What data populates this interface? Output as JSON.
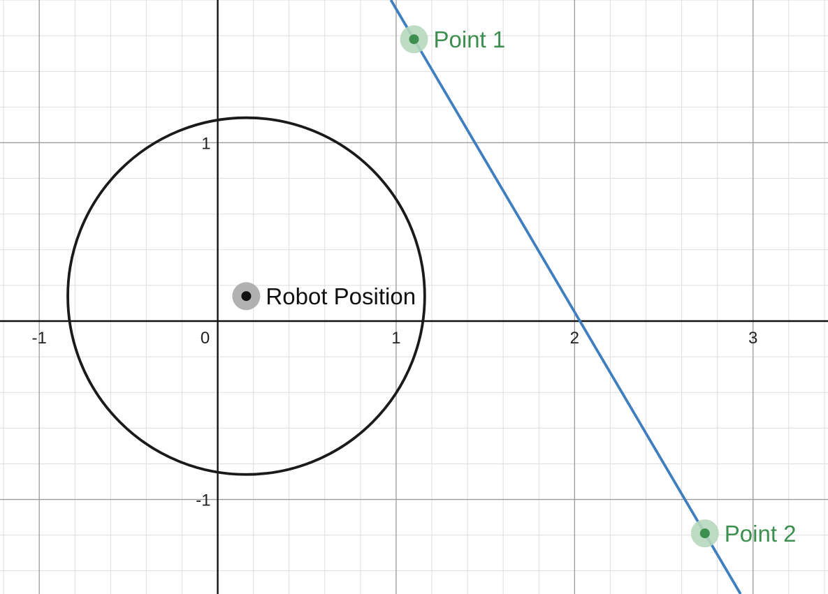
{
  "chart_data": {
    "type": "scatter",
    "title": "",
    "xlabel": "",
    "ylabel": "",
    "xlim": [
      -1.22,
      3.42
    ],
    "ylim": [
      -1.53,
      1.8
    ],
    "grid": true,
    "minor_grid_step": 0.2,
    "x_tick_labels": [
      "-1",
      "0",
      "1",
      "2",
      "3"
    ],
    "y_tick_labels": [
      "1",
      "-1"
    ],
    "x_ticks": [
      -1,
      0,
      1,
      2,
      3
    ],
    "y_ticks": [
      1,
      -1
    ],
    "points": [
      {
        "label": "Point 1",
        "x": 1.1,
        "y": 1.58,
        "color": "#3d8f4f",
        "halo": "#b7d8bc"
      },
      {
        "label": "Point 2",
        "x": 2.73,
        "y": -1.19,
        "color": "#3d8f4f",
        "halo": "#b7d8bc"
      },
      {
        "label": "Robot Position",
        "x": 0.16,
        "y": 0.14,
        "color": "#111111",
        "halo": "#a8a8a8"
      }
    ],
    "circle": {
      "center": [
        0.16,
        0.14
      ],
      "radius": 1.0,
      "color": "#1a1a1a"
    },
    "line": {
      "through": [
        [
          1.1,
          1.58
        ],
        [
          2.73,
          -1.19
        ]
      ],
      "color": "#3f7fbf"
    },
    "colors": {
      "axis": "#111111",
      "major_grid": "#9a9a9a",
      "minor_grid": "#dedede"
    }
  }
}
